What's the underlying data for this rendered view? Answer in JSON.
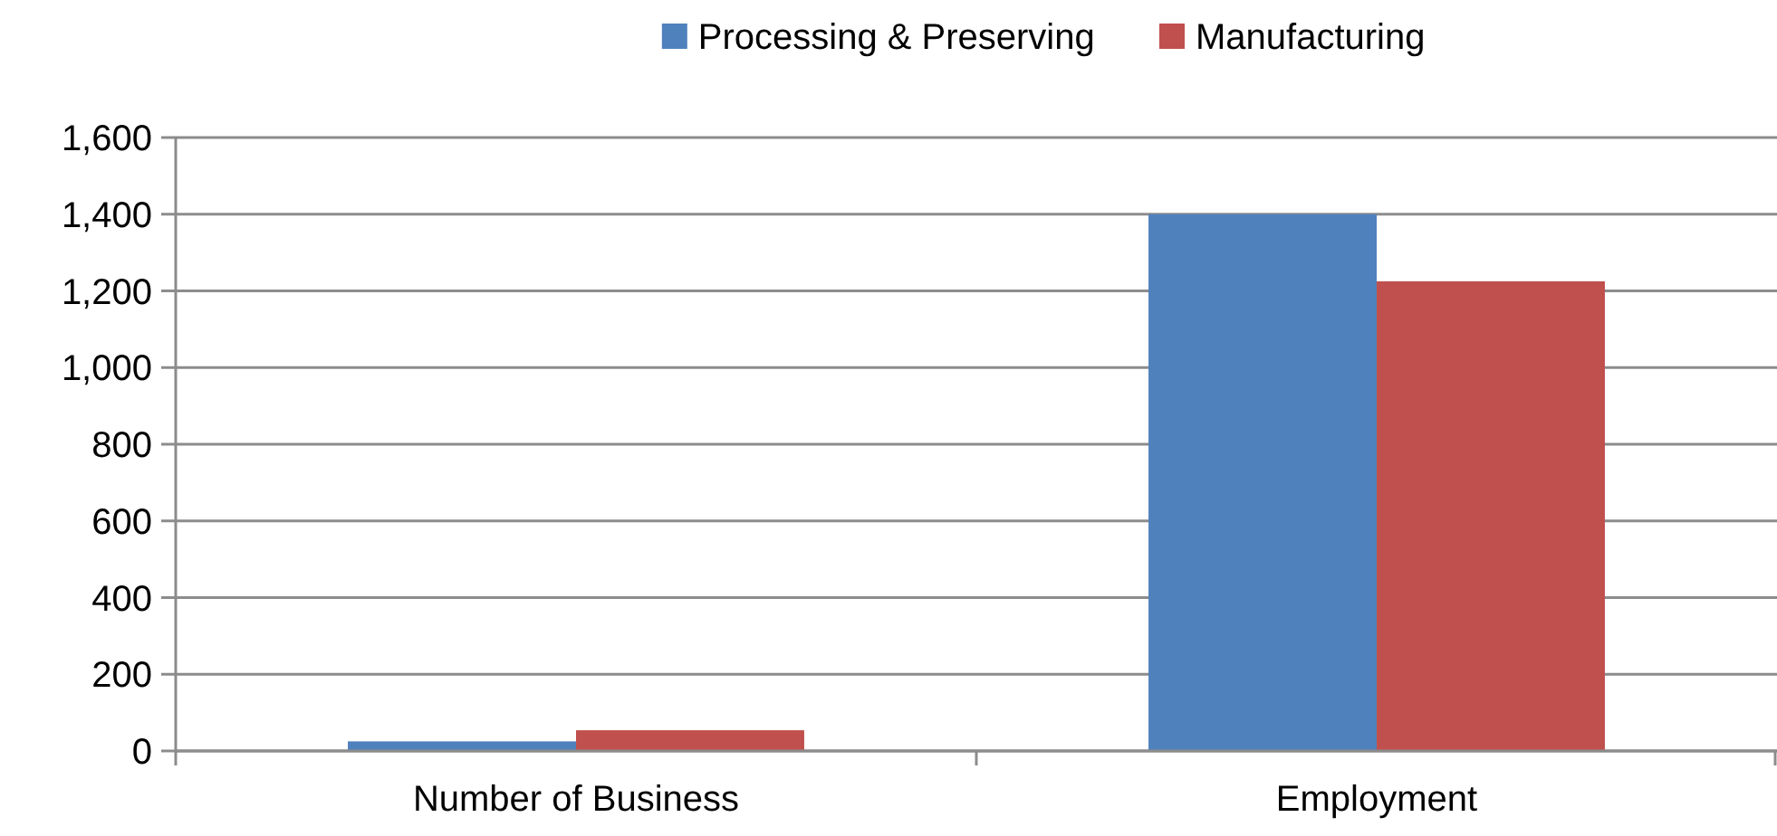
{
  "chart_data": {
    "type": "bar",
    "categories": [
      "Number of Business",
      "Employment"
    ],
    "series": [
      {
        "name": "Processing & Preserving",
        "color": "#4f81bd",
        "values": [
          25,
          1400
        ]
      },
      {
        "name": "Manufacturing",
        "color": "#c0504d",
        "values": [
          54,
          1225
        ]
      }
    ],
    "ylim": [
      0,
      1600
    ],
    "yticks": [
      {
        "value": 0,
        "label": "0"
      },
      {
        "value": 200,
        "label": "200"
      },
      {
        "value": 400,
        "label": "400"
      },
      {
        "value": 600,
        "label": "600"
      },
      {
        "value": 800,
        "label": "800"
      },
      {
        "value": 1000,
        "label": "1,000"
      },
      {
        "value": 1200,
        "label": "1,200"
      },
      {
        "value": 1400,
        "label": "1,400"
      },
      {
        "value": 1600,
        "label": "1,600"
      }
    ],
    "grid": "y",
    "legend": "top"
  }
}
